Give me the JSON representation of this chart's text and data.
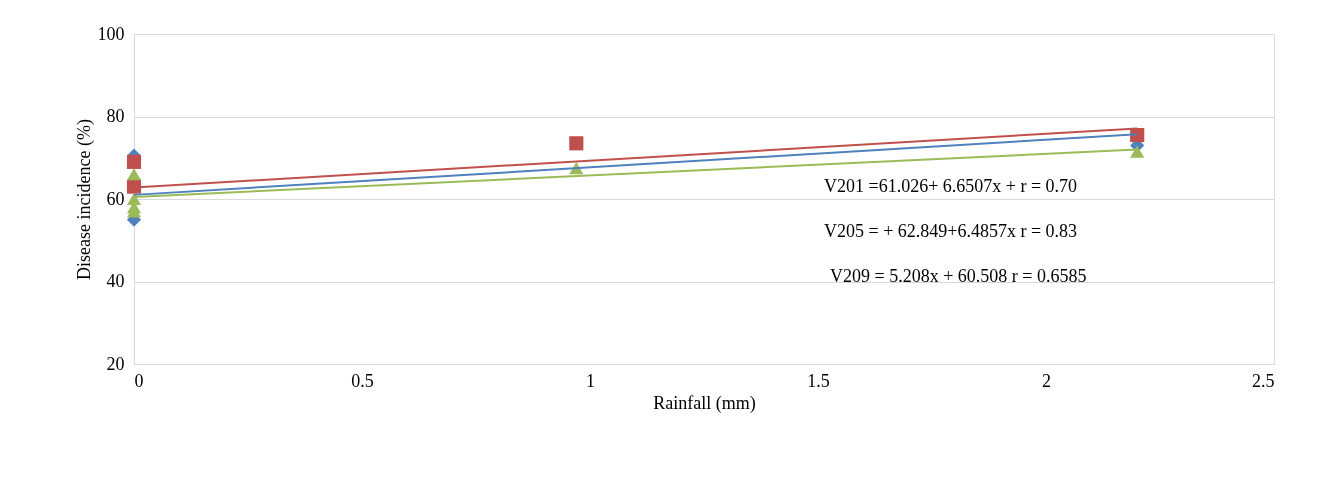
{
  "chart_data": {
    "type": "scatter",
    "xlabel": "Rainfall (mm)",
    "ylabel": "Disease incidence (%)",
    "xlim": [
      0,
      2.5
    ],
    "xticks": [
      0,
      0.5,
      1,
      1.5,
      2,
      2.5
    ],
    "ylim": [
      20,
      100
    ],
    "yticks": [
      20,
      40,
      60,
      80,
      100
    ],
    "grid": "y",
    "series": [
      {
        "marker": "diamond",
        "color": "#4f81bd",
        "x": [
          0,
          0,
          2.2
        ],
        "values": [
          70.5,
          55,
          73
        ]
      },
      {
        "marker": "square",
        "color": "#c0504d",
        "x": [
          0,
          0,
          0.97,
          2.2
        ],
        "values": [
          69,
          63,
          73.5,
          75.5
        ]
      },
      {
        "marker": "triangle",
        "color": "#9bbb59",
        "x": [
          0,
          0,
          0,
          0,
          0.97,
          2.2
        ],
        "values": [
          66,
          60,
          58,
          57,
          67.5,
          71.5
        ]
      },
      {
        "type": "line",
        "marker": "none",
        "color": "#4f81bd",
        "x": [
          0,
          2.2
        ],
        "values": [
          61.0,
          75.7
        ]
      },
      {
        "type": "line",
        "marker": "none",
        "color": "#c0504d",
        "x": [
          0,
          2.2
        ],
        "values": [
          62.8,
          77.1
        ]
      },
      {
        "type": "line",
        "marker": "none",
        "color": "#9bbb59",
        "x": [
          0,
          2.2
        ],
        "values": [
          60.5,
          72.0
        ]
      }
    ],
    "annotations": [
      "V201 =61.026+ 6.6507x +  r = 0.70",
      "V205 = + 62.849+6.4857x  r = 0.83",
      "V209 = 5.208x + 60.508     r = 0.6585"
    ]
  }
}
